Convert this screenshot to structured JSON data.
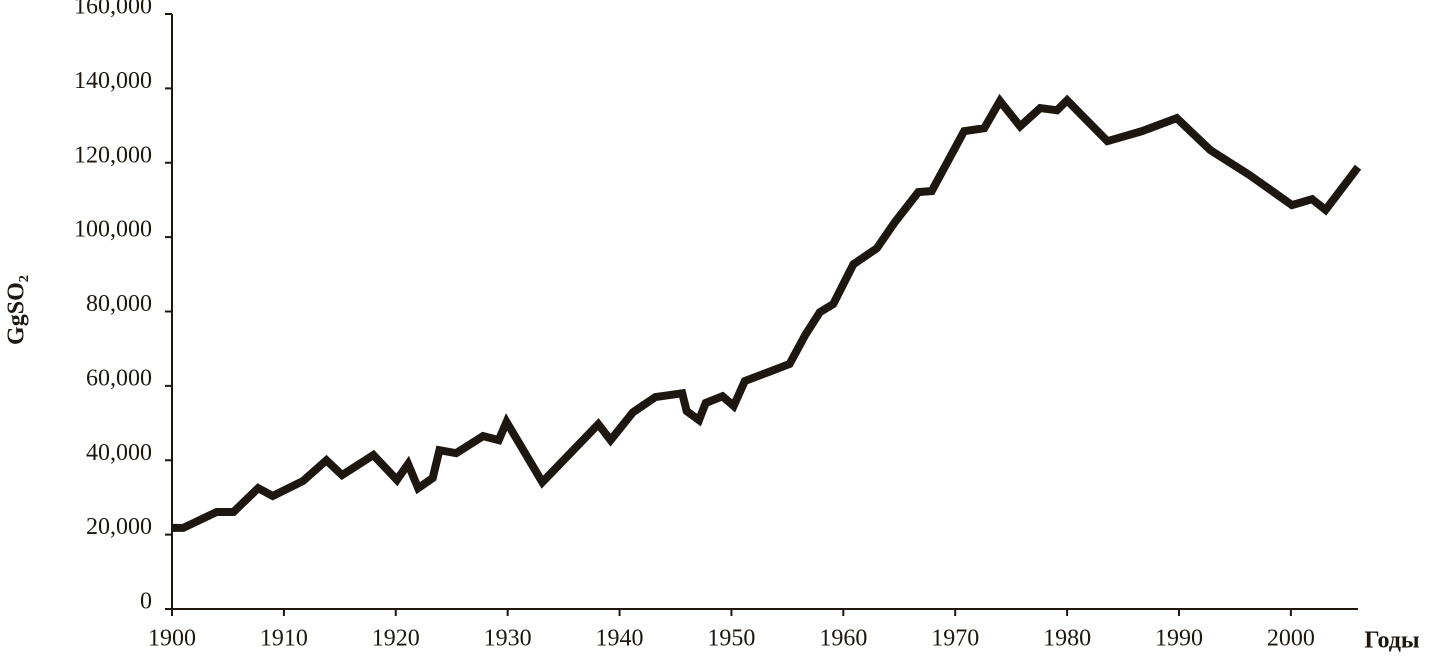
{
  "chart_data": {
    "type": "line",
    "ylabel": "GgSO₂",
    "xlabel": "Годы",
    "x": [
      1900,
      1901,
      1904,
      1905.5,
      1907.7,
      1909,
      1911.7,
      1913.8,
      1915.2,
      1918,
      1920.1,
      1921.1,
      1922,
      1923.3,
      1923.9,
      1925.4,
      1927.8,
      1929.2,
      1929.9,
      1933.1,
      1938.1,
      1939.2,
      1941.2,
      1943.2,
      1945.6,
      1946,
      1947.1,
      1947.7,
      1949.2,
      1950.2,
      1951.2,
      1953.3,
      1955.2,
      1956.6,
      1957.9,
      1959.1,
      1960.9,
      1963,
      1964.6,
      1966.7,
      1967.9,
      1970.8,
      1972.6,
      1974,
      1975.8,
      1977.6,
      1979.1,
      1980,
      1983.6,
      1986.7,
      1989.8,
      1992.8,
      1996.3,
      2000.1,
      2001.9,
      2003.1,
      2006
    ],
    "series": [
      {
        "color": "#1e1710",
        "values": [
          21800,
          21800,
          26100,
          26100,
          32500,
          30400,
          34400,
          40000,
          36000,
          41400,
          34700,
          39000,
          32500,
          35200,
          42700,
          41900,
          46500,
          45400,
          50300,
          34100,
          49700,
          45400,
          52900,
          57000,
          58000,
          53200,
          50800,
          55400,
          57200,
          54600,
          61300,
          63700,
          65900,
          73700,
          79800,
          82000,
          92700,
          97000,
          104000,
          112100,
          112400,
          128500,
          129300,
          136600,
          129800,
          134700,
          134100,
          136800,
          125800,
          128500,
          132000,
          123400,
          116700,
          108600,
          110200,
          107300,
          118800
        ]
      }
    ],
    "xlim": [
      1900,
      2006
    ],
    "xticks": [
      1900,
      1910,
      1920,
      1930,
      1940,
      1950,
      1960,
      1970,
      1980,
      1990,
      2000
    ],
    "ylim": [
      0,
      160000
    ],
    "yticks": [
      0,
      {
        "value": 20000,
        "label": "20,000"
      },
      {
        "value": 40000,
        "label": "40,000"
      },
      {
        "value": 60000,
        "label": "60,000"
      },
      {
        "value": 80000,
        "label": "80,000"
      },
      {
        "value": 100000,
        "label": "100,000"
      },
      {
        "value": 120000,
        "label": "120,000"
      },
      {
        "value": 140000,
        "label": "140,000"
      },
      {
        "value": 160000,
        "label": "160,000"
      }
    ],
    "grid": false
  }
}
